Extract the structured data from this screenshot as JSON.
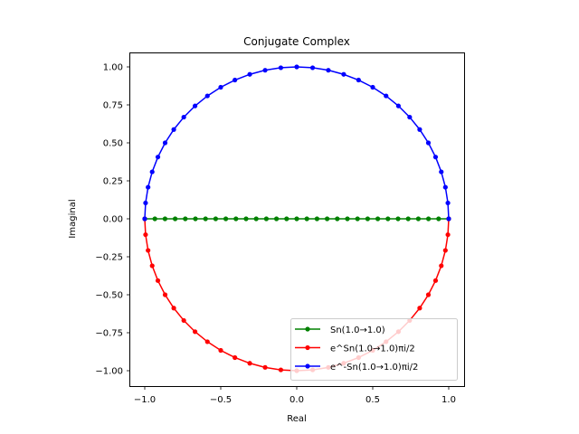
{
  "chart_data": {
    "type": "line",
    "title": "Conjugate Complex",
    "xlabel": "Real",
    "ylabel": "Imaginal",
    "xlim": [
      -1.1,
      1.1
    ],
    "ylim": [
      -1.1,
      1.1
    ],
    "xticks": [
      "−1.0",
      "−0.5",
      "0.0",
      "0.5",
      "1.0"
    ],
    "xtick_values": [
      -1.0,
      -0.5,
      0.0,
      0.5,
      1.0
    ],
    "yticks": [
      "−1.00",
      "−0.75",
      "−0.50",
      "−0.25",
      "0.00",
      "0.25",
      "0.50",
      "0.75",
      "1.00"
    ],
    "ytick_values": [
      -1.0,
      -0.75,
      -0.5,
      -0.25,
      0.0,
      0.25,
      0.5,
      0.75,
      1.0
    ],
    "grid": false,
    "legend_position": "lower right",
    "num_points": 31,
    "series": [
      {
        "name": "Sn(1.0→1.0)",
        "color": "#008000",
        "description": "real axis from -1 to 1, imag = 0",
        "param": "x = -1 + 2k/30, y = 0"
      },
      {
        "name": "e^Sn(1.0→1.0)πi/2",
        "color": "#ff0000",
        "description": "lower unit semicircle",
        "param": "angle from -π to 0"
      },
      {
        "name": "e^-Sn(1.0→1.0)πi/2",
        "color": "#0000ff",
        "description": "upper unit semicircle",
        "param": "angle from π to 0"
      }
    ]
  }
}
